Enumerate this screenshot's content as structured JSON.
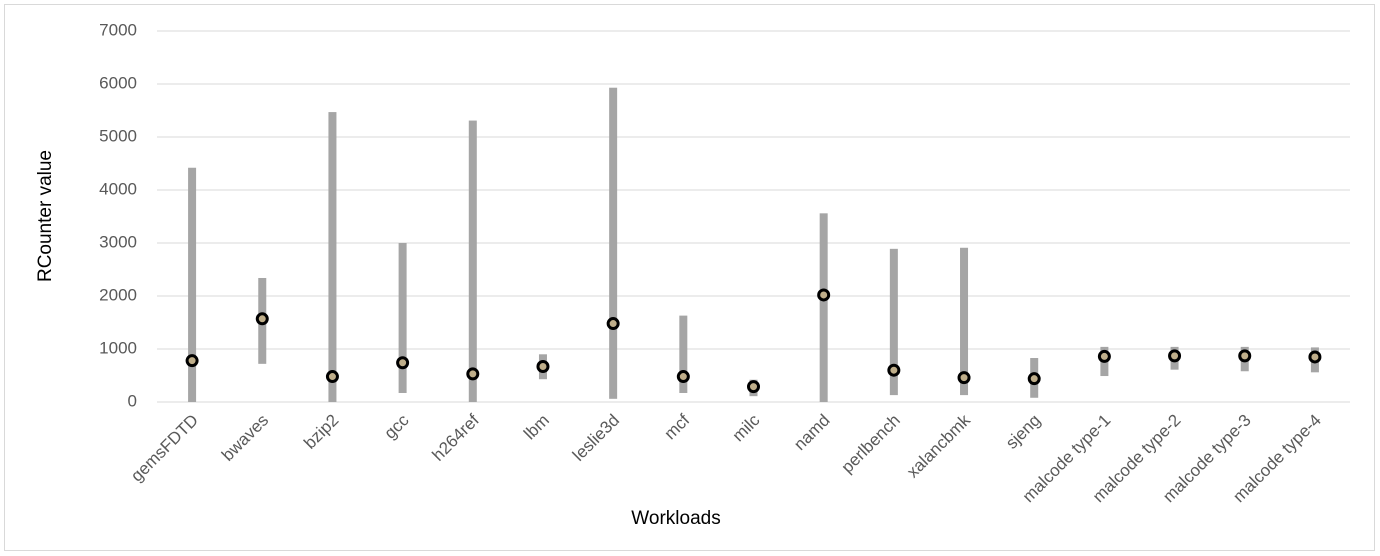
{
  "chart_data": {
    "type": "range",
    "x_label": "Workloads",
    "y_label": "RCounter value",
    "categories": [
      "gemsFDTD",
      "bwaves",
      "bzip2",
      "gcc",
      "h264ref",
      "lbm",
      "leslie3d",
      "mcf",
      "milc",
      "namd",
      "perlbench",
      "xalancbmk",
      "sjeng",
      "malcode type-1",
      "malcode type-2",
      "malcode type-3",
      "malcode type-4"
    ],
    "low": [
      0,
      720,
      0,
      170,
      0,
      430,
      60,
      170,
      110,
      0,
      130,
      130,
      80,
      490,
      610,
      580,
      560
    ],
    "high": [
      4420,
      2340,
      5470,
      3000,
      5310,
      900,
      5930,
      1630,
      420,
      3560,
      2890,
      2910,
      830,
      1040,
      1040,
      1040,
      1030
    ],
    "values": [
      780,
      1570,
      480,
      740,
      530,
      670,
      1480,
      480,
      290,
      2020,
      600,
      460,
      440,
      860,
      870,
      870,
      850
    ],
    "bar_color": "#a5a5a5",
    "marker_color": "#000000",
    "ylim": [
      0,
      7000
    ],
    "yticks": [
      0,
      1000,
      2000,
      3000,
      4000,
      5000,
      6000,
      7000
    ],
    "grid": true
  }
}
